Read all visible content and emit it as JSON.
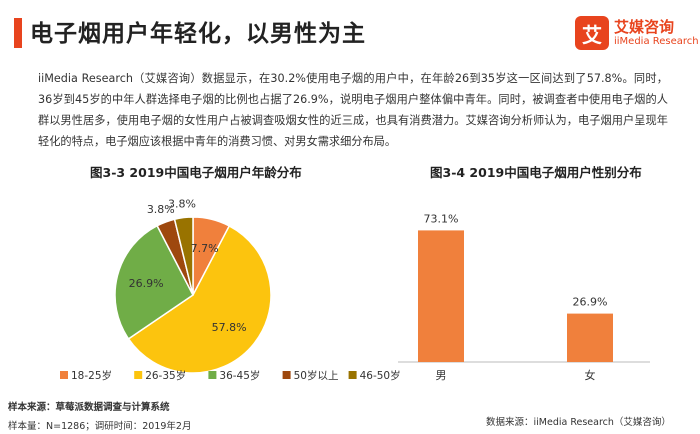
{
  "header": {
    "title": "电子烟用户年轻化，以男性为主",
    "logo_mark": "艾",
    "logo_cn": "艾媒咨询",
    "logo_en": "iiMedia Research"
  },
  "paragraph": "iiMedia Research（艾媒咨询）数据显示，在30.2%使用电子烟的用户中，在年龄26到35岁这一区间达到了57.8%。同时，36岁到45岁的中年人群选择电子烟的比例也占据了26.9%，说明电子烟用户整体偏中青年。同时，被调查者中使用电子烟的人群以男性居多，使用电子烟的女性用户占被调查吸烟女性的近三成，也具有消费潜力。艾媒咨询分析师认为，电子烟用户呈现年轻化的特点，电子烟应该根据中青年的消费习惯、对男女需求细分布局。",
  "footer": {
    "source_sample": "样本来源：草莓派数据调查与计算系统",
    "sample_info": "样本量：N=1286；调研时间：2019年2月",
    "data_source": "数据来源：iiMedia Research（艾媒咨询）"
  },
  "chart_data": [
    {
      "type": "pie",
      "title": "图3-3 2019中国电子烟用户年龄分布",
      "labels": [
        "18-25岁",
        "26-35岁",
        "36-45岁",
        "50岁以上",
        "46-50岁"
      ],
      "values": [
        7.7,
        57.8,
        26.9,
        3.8,
        3.8
      ],
      "value_labels": [
        "7.7%",
        "57.8%",
        "26.9%",
        "3.8%",
        "3.8%"
      ],
      "colors": [
        "#f0803c",
        "#fcc40e",
        "#70ad47",
        "#9e480e",
        "#997300"
      ],
      "legend": "bottom"
    },
    {
      "type": "bar",
      "title": "图3-4 2019中国电子烟用户性别分布",
      "categories": [
        "男",
        "女"
      ],
      "values": [
        73.1,
        26.9
      ],
      "value_labels": [
        "73.1%",
        "26.9%"
      ],
      "ylim": [
        0,
        80
      ],
      "color": "#f0803c"
    }
  ]
}
